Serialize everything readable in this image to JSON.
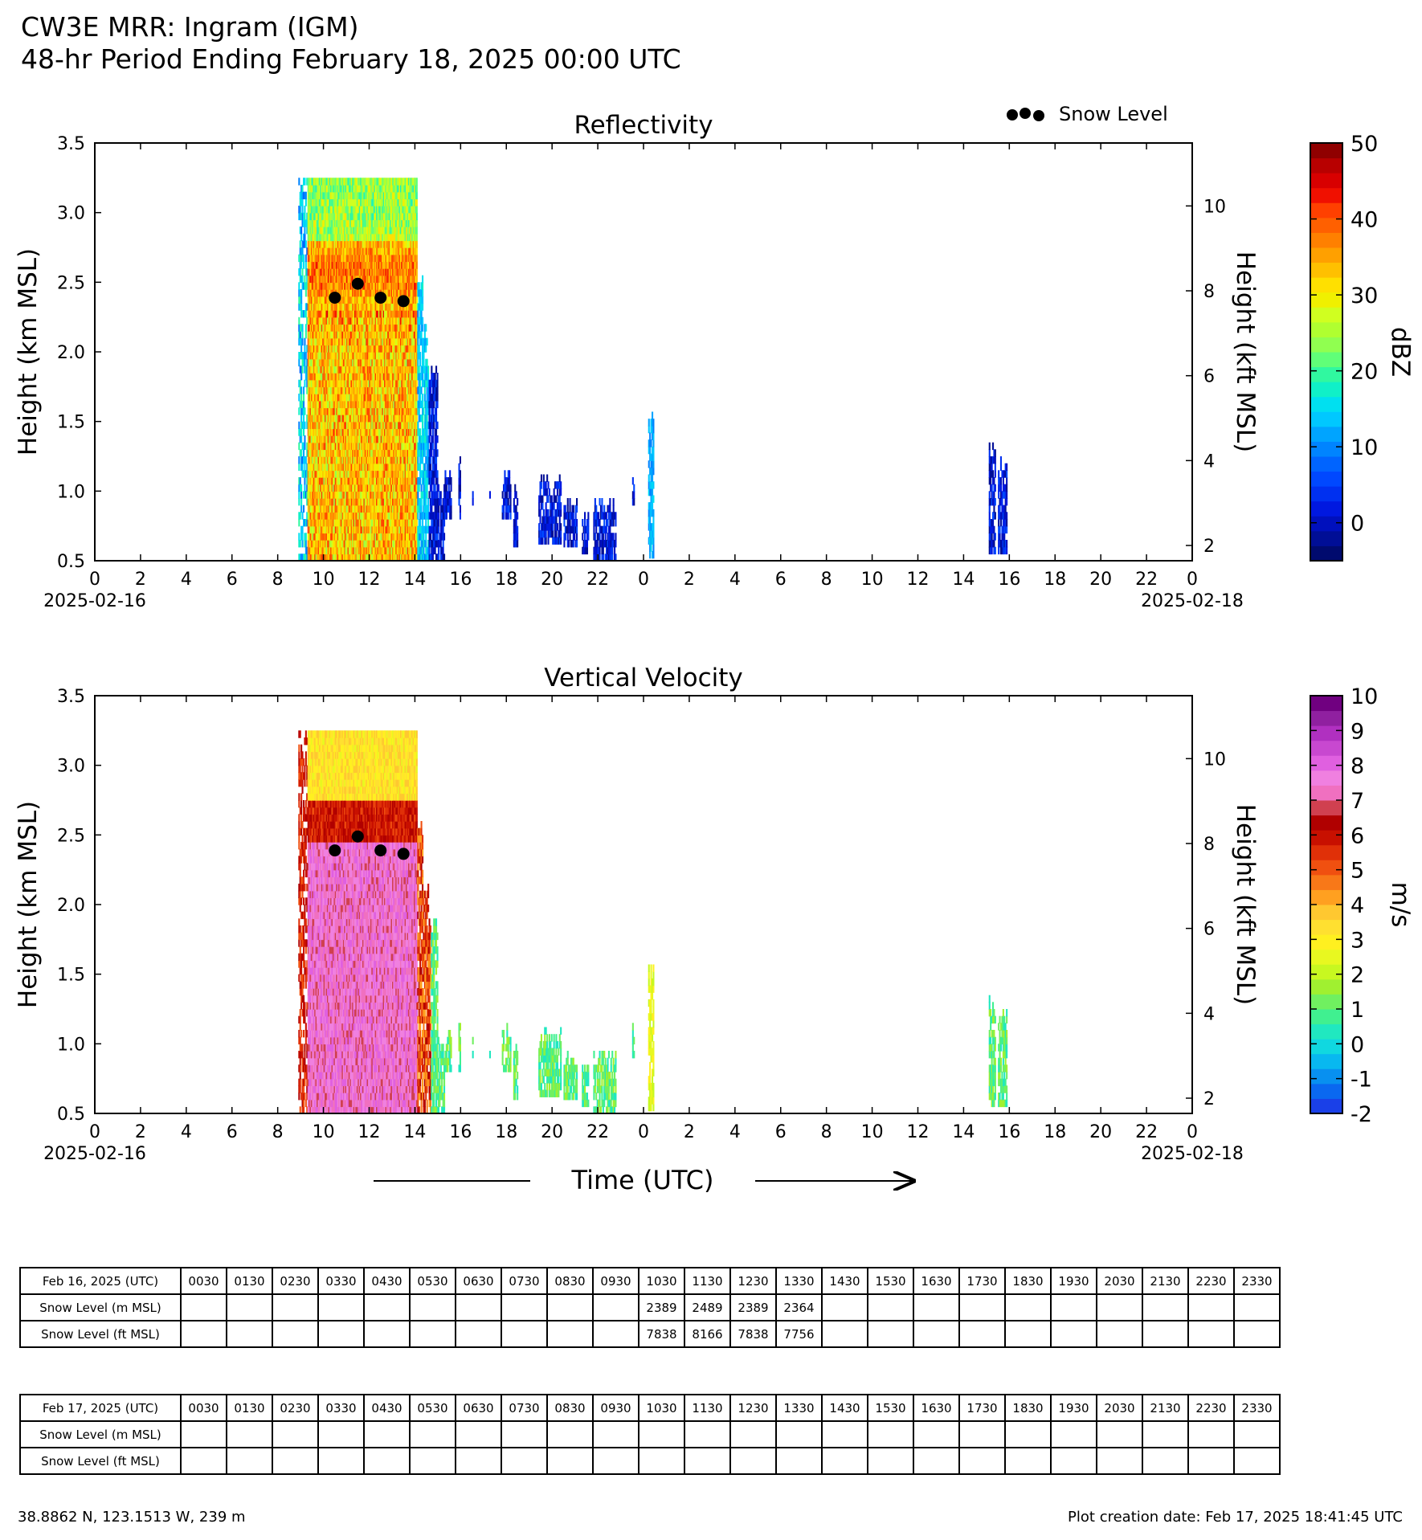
{
  "header": {
    "line1": "CW3E MRR: Ingram (IGM)",
    "line2": "48-hr Period Ending February 18, 2025 00:00 UTC"
  },
  "legend": {
    "label": "Snow Level"
  },
  "xaxis": {
    "label": "Time (UTC)",
    "ticks": [
      "0",
      "2",
      "4",
      "6",
      "8",
      "10",
      "12",
      "14",
      "16",
      "18",
      "20",
      "22",
      "0",
      "2",
      "4",
      "6",
      "8",
      "10",
      "12",
      "14",
      "16",
      "18",
      "20",
      "22",
      "0"
    ],
    "start_date": "2025-02-16",
    "end_date": "2025-02-18"
  },
  "chart_data": [
    {
      "type": "heatmap",
      "title": "Reflectivity",
      "ylabel": "Height (km MSL)",
      "y2label": "Height (kft MSL)",
      "xlim": [
        0,
        48
      ],
      "ylim": [
        0.5,
        3.5
      ],
      "yticks": [
        "0.5",
        "1.0",
        "1.5",
        "2.0",
        "2.5",
        "3.0",
        "3.5"
      ],
      "y2ticks": [
        "2",
        "4",
        "6",
        "8",
        "10"
      ],
      "colorbar": {
        "label": "dBZ",
        "ticks": [
          "50",
          "40",
          "30",
          "20",
          "10",
          "0"
        ],
        "range": [
          -5,
          50
        ],
        "colors": [
          "#000a6e",
          "#000e96",
          "#0010bd",
          "#0018e0",
          "#0030f0",
          "#0048ff",
          "#0064ff",
          "#0084ff",
          "#00a4ff",
          "#00c8ff",
          "#00e0f0",
          "#10f0c8",
          "#30f8a0",
          "#60ff78",
          "#90ff50",
          "#b0ff30",
          "#d0ff20",
          "#f0f000",
          "#ffe000",
          "#ffc000",
          "#ffa000",
          "#ff8000",
          "#ff6000",
          "#ff4000",
          "#f01000",
          "#d80000",
          "#b80000",
          "#900000"
        ]
      },
      "snow_level": {
        "hours": [
          10.5,
          11.5,
          12.5,
          13.5
        ],
        "km": [
          2.389,
          2.489,
          2.389,
          2.364
        ]
      }
    },
    {
      "type": "heatmap",
      "title": "Vertical Velocity",
      "ylabel": "Height (km MSL)",
      "y2label": "Height (kft MSL)",
      "xlim": [
        0,
        48
      ],
      "ylim": [
        0.5,
        3.5
      ],
      "yticks": [
        "0.5",
        "1.0",
        "1.5",
        "2.0",
        "2.5",
        "3.0",
        "3.5"
      ],
      "y2ticks": [
        "2",
        "4",
        "6",
        "8",
        "10"
      ],
      "colorbar": {
        "label": "m/s",
        "ticks": [
          "10",
          "9",
          "8",
          "7",
          "6",
          "5",
          "4",
          "3",
          "2",
          "1",
          "0",
          "-1",
          "-2"
        ],
        "range": [
          -2,
          10
        ],
        "colors": [
          "#1a40e8",
          "#0a68f0",
          "#0890f0",
          "#08b8f0",
          "#10d8e0",
          "#20e8c0",
          "#40f090",
          "#70f060",
          "#a0f030",
          "#c8f820",
          "#e8f820",
          "#fff020",
          "#ffe030",
          "#ffc830",
          "#ffa020",
          "#f87818",
          "#f05010",
          "#e03008",
          "#c81000",
          "#b00000",
          "#d04050",
          "#f070c0",
          "#f080e0",
          "#e060e0",
          "#c848d0",
          "#b030c0",
          "#9020a0",
          "#700080"
        ]
      },
      "snow_level": {
        "hours": [
          10.5,
          11.5,
          12.5,
          13.5
        ],
        "km": [
          2.389,
          2.489,
          2.389,
          2.364
        ]
      }
    }
  ],
  "tables": [
    {
      "date_label": "Feb 16, 2025 (UTC)",
      "times": [
        "0030",
        "0130",
        "0230",
        "0330",
        "0430",
        "0530",
        "0630",
        "0730",
        "0830",
        "0930",
        "1030",
        "1130",
        "1230",
        "1330",
        "1430",
        "1530",
        "1630",
        "1730",
        "1830",
        "1930",
        "2030",
        "2130",
        "2230",
        "2330"
      ],
      "rows": [
        {
          "label": "Snow Level (m MSL)",
          "values": [
            "",
            "",
            "",
            "",
            "",
            "",
            "",
            "",
            "",
            "",
            "2389",
            "2489",
            "2389",
            "2364",
            "",
            "",
            "",
            "",
            "",
            "",
            "",
            "",
            "",
            ""
          ]
        },
        {
          "label": "Snow Level (ft MSL)",
          "values": [
            "",
            "",
            "",
            "",
            "",
            "",
            "",
            "",
            "",
            "",
            "7838",
            "8166",
            "7838",
            "7756",
            "",
            "",
            "",
            "",
            "",
            "",
            "",
            "",
            "",
            ""
          ]
        }
      ]
    },
    {
      "date_label": "Feb 17, 2025 (UTC)",
      "times": [
        "0030",
        "0130",
        "0230",
        "0330",
        "0430",
        "0530",
        "0630",
        "0730",
        "0830",
        "0930",
        "1030",
        "1130",
        "1230",
        "1330",
        "1430",
        "1530",
        "1630",
        "1730",
        "1830",
        "1930",
        "2030",
        "2130",
        "2230",
        "2330"
      ],
      "rows": [
        {
          "label": "Snow Level (m MSL)",
          "values": [
            "",
            "",
            "",
            "",
            "",
            "",
            "",
            "",
            "",
            "",
            "",
            "",
            "",
            "",
            "",
            "",
            "",
            "",
            "",
            "",
            "",
            "",
            "",
            ""
          ]
        },
        {
          "label": "Snow Level (ft MSL)",
          "values": [
            "",
            "",
            "",
            "",
            "",
            "",
            "",
            "",
            "",
            "",
            "",
            "",
            "",
            "",
            "",
            "",
            "",
            "",
            "",
            "",
            "",
            "",
            "",
            ""
          ]
        }
      ]
    }
  ],
  "footer": {
    "location": "38.8862 N, 123.1513 W, 239 m",
    "created": "Plot creation date: Feb 17, 2025 18:41:45 UTC"
  }
}
